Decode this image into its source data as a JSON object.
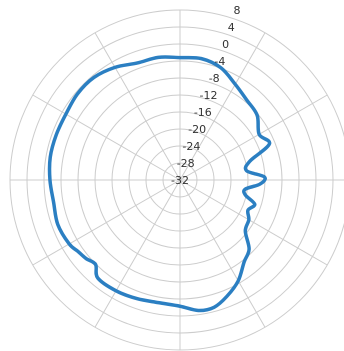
{
  "chart_data": {
    "type": "line",
    "subtype": "polar",
    "title": "",
    "angular_unit": "degrees",
    "angular_zero": "top",
    "angular_direction": "clockwise",
    "angular_grid_step": 30,
    "radial_range": [
      -32,
      8
    ],
    "radial_ticks": [
      "8",
      "4",
      "0",
      "-4",
      "-8",
      "-12",
      "-16",
      "-20",
      "-24",
      "-28",
      "-32"
    ],
    "radial_tick_values": [
      8,
      4,
      0,
      -4,
      -8,
      -12,
      -16,
      -20,
      -24,
      -28,
      -32
    ],
    "grid": true,
    "legend": "none",
    "series": [
      {
        "color": "#2b7fc2",
        "theta": [
          0,
          10,
          20,
          30,
          40,
          50,
          60,
          68,
          75,
          82,
          88,
          93,
          98,
          103,
          108,
          114,
          120,
          128,
          135,
          142,
          150,
          158,
          165,
          172,
          180,
          190,
          200,
          210,
          220,
          225,
          230,
          235,
          240,
          250,
          260,
          270,
          280,
          290,
          300,
          310,
          320,
          330,
          340,
          350
        ],
        "r": [
          -3.2,
          -3.0,
          -3.9,
          -6.0,
          -7.5,
          -8.3,
          -10.5,
          -9.3,
          -15.0,
          -16.2,
          -12.1,
          -13.2,
          -16.5,
          -16.2,
          -13.5,
          -14.5,
          -13.3,
          -12.5,
          -9.0,
          -7.5,
          -4.6,
          -2.5,
          -1.0,
          -1.0,
          -2.3,
          -2.7,
          -2.3,
          -1.9,
          -1.9,
          -3.9,
          -3.2,
          -2.7,
          -1.9,
          -1.4,
          -1.8,
          -1.4,
          -1.0,
          -1.0,
          -1.0,
          -0.5,
          -0.5,
          -1.4,
          -2.7,
          -2.7
        ]
      }
    ]
  },
  "colors": {
    "grid": "#cccccc",
    "series": "#2b7fc2",
    "background": "#ffffff"
  }
}
